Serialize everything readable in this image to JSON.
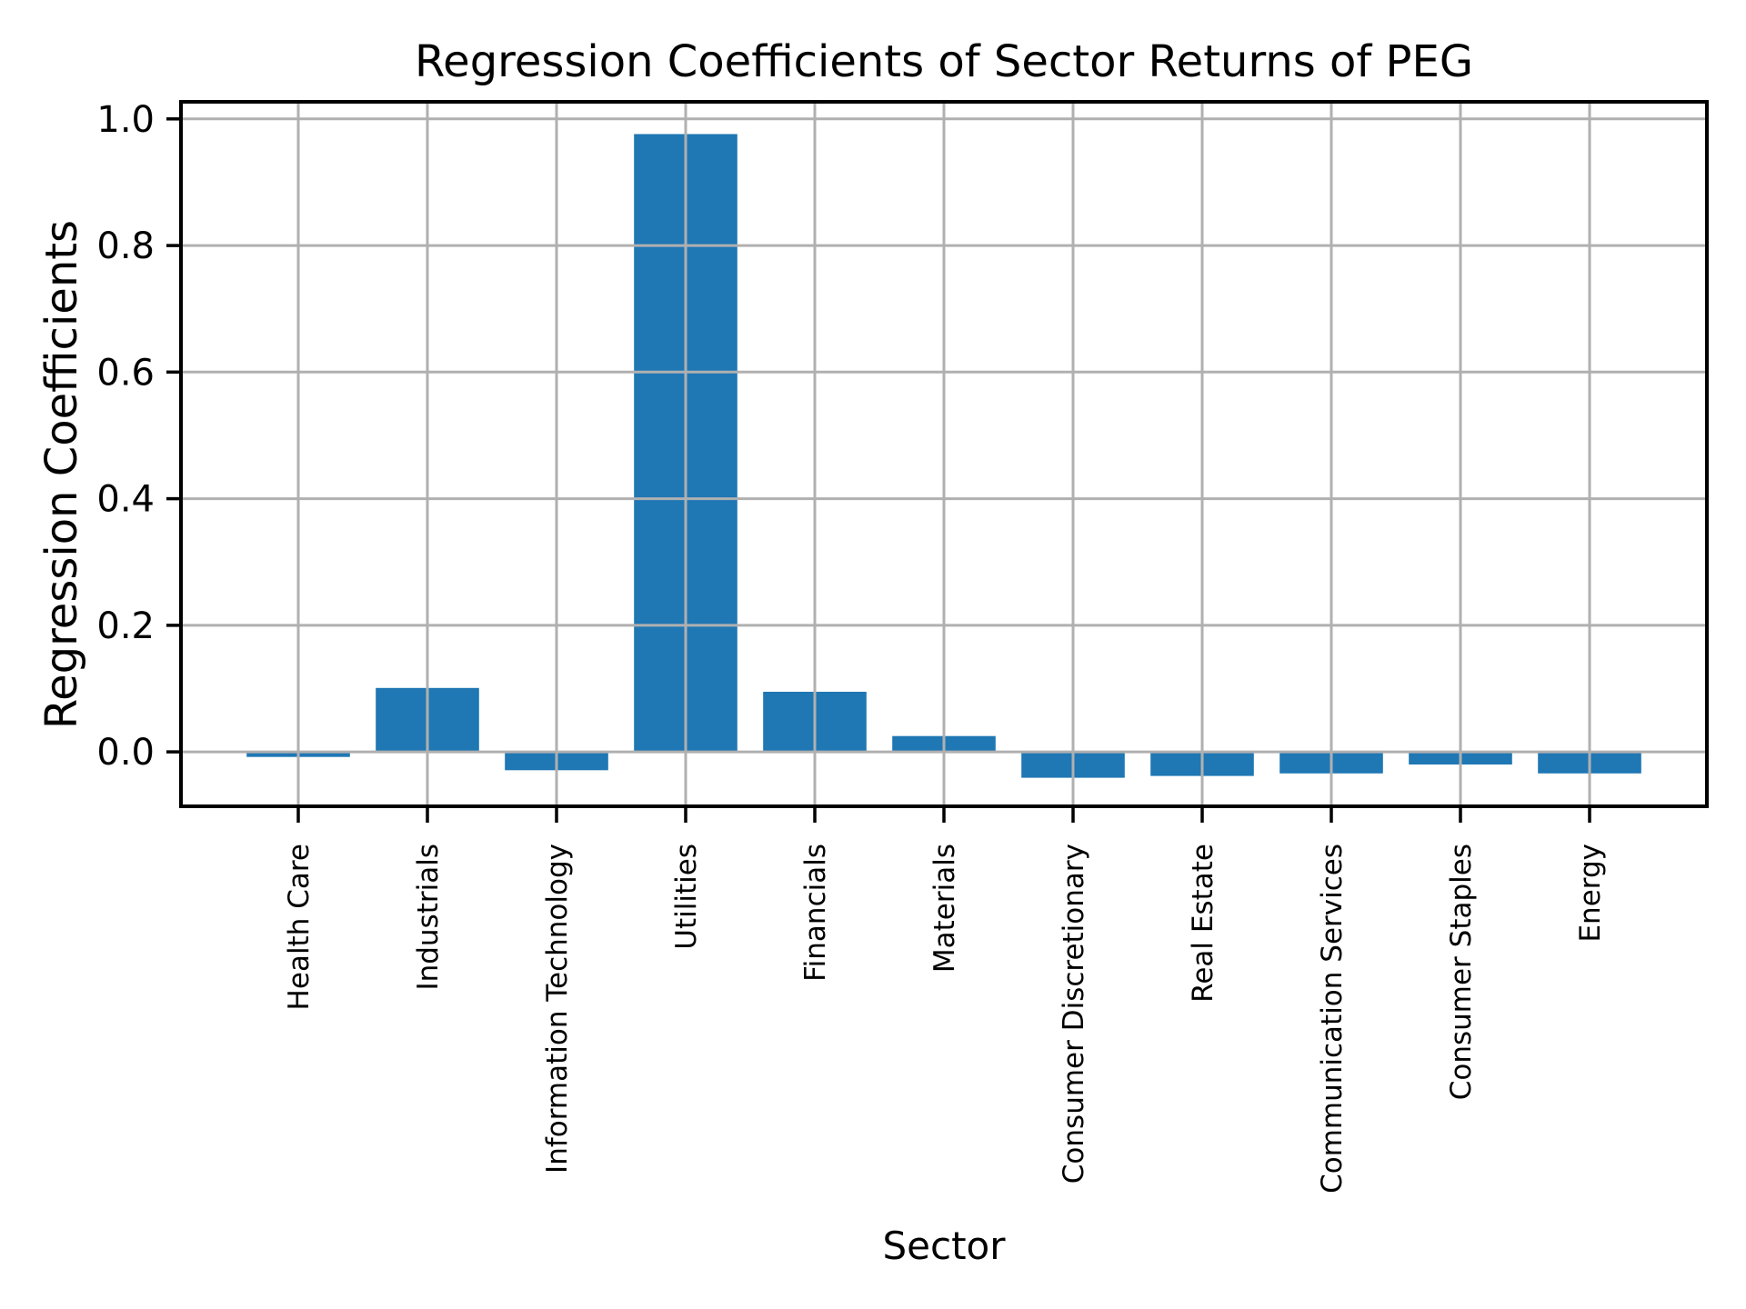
{
  "chart_data": {
    "type": "bar",
    "title": "Regression Coefficients of Sector Returns of PEG",
    "xlabel": "Sector",
    "ylabel": "Regression Coefficients",
    "categories": [
      "Health Care",
      "Industrials",
      "Information Technology",
      "Utilities",
      "Financials",
      "Materials",
      "Consumer Discretionary",
      "Real Estate",
      "Communication Services",
      "Consumer Staples",
      "Energy"
    ],
    "values": [
      -0.008,
      0.101,
      -0.029,
      0.976,
      0.095,
      0.025,
      -0.041,
      -0.038,
      -0.034,
      -0.02,
      -0.034
    ],
    "yticks": [
      0.0,
      0.2,
      0.4,
      0.6,
      0.8,
      1.0
    ],
    "ytick_labels": [
      "0.0",
      "0.2",
      "0.4",
      "0.6",
      "0.8",
      "1.0"
    ],
    "ylim": [
      -0.086,
      1.027
    ],
    "xtick_rotation": 90,
    "grid": true,
    "legend": "none",
    "bar_color": "#1f77b4",
    "grid_color": "#b0b0b0",
    "spine_color": "#000000",
    "tick_color": "#000000",
    "text_color": "#000000",
    "background_color": "#ffffff"
  }
}
